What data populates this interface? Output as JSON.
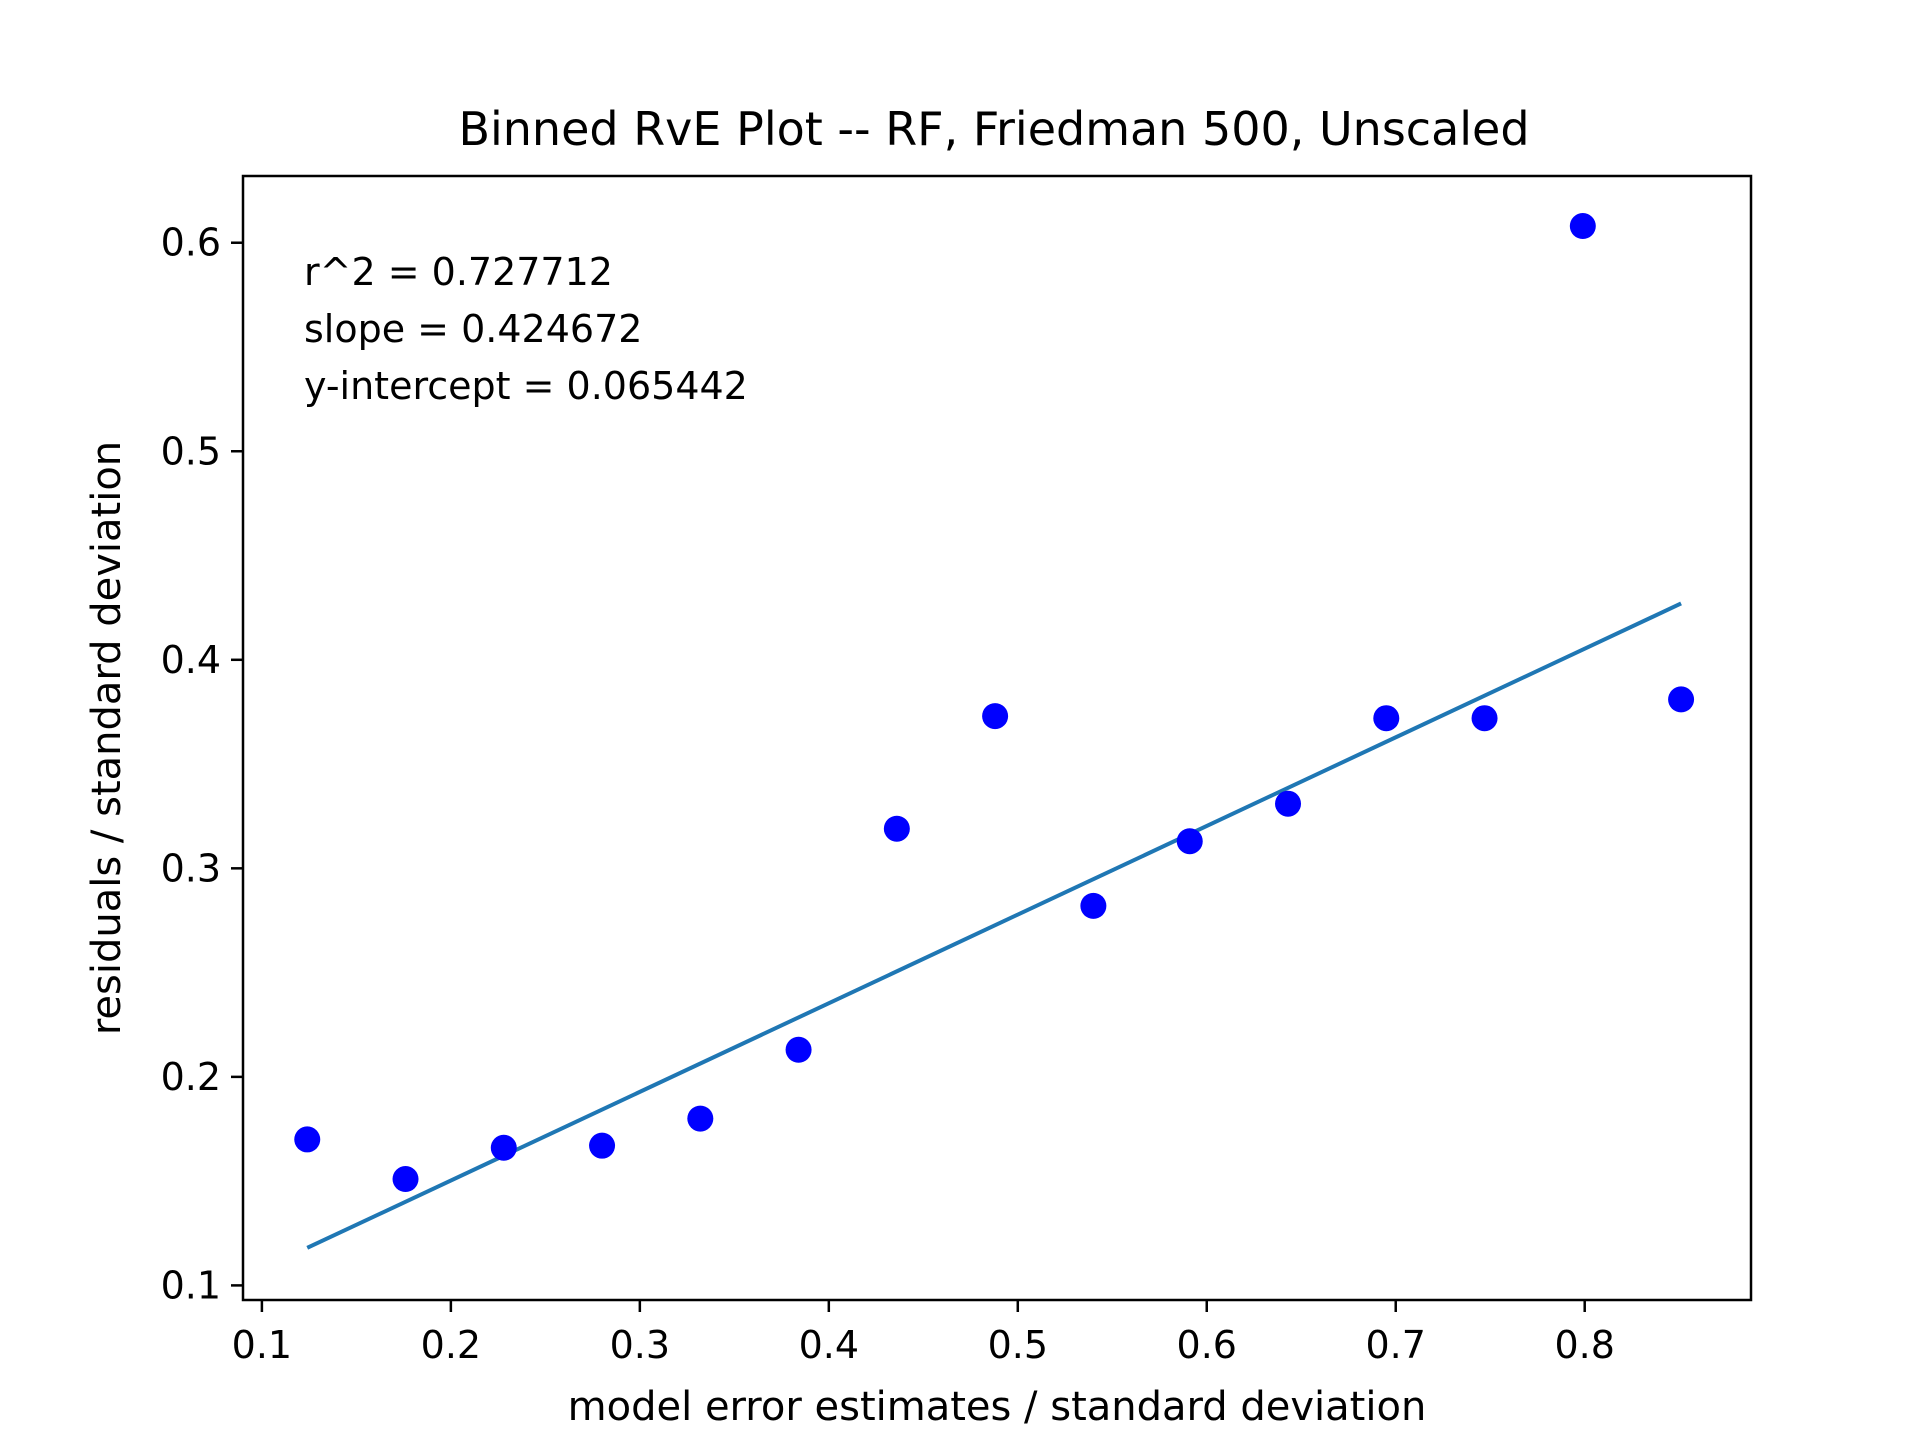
{
  "chart_data": {
    "type": "scatter",
    "title": "Binned RvE Plot -- RF, Friedman 500, Unscaled",
    "xlabel": "model error estimates / standard deviation",
    "ylabel": "residuals / standard deviation",
    "xlim": [
      0.09,
      0.888
    ],
    "ylim": [
      0.093,
      0.632
    ],
    "xticks": [
      0.1,
      0.2,
      0.3,
      0.4,
      0.5,
      0.6,
      0.7,
      0.8
    ],
    "xtick_labels": [
      "0.1",
      "0.2",
      "0.3",
      "0.4",
      "0.5",
      "0.6",
      "0.7",
      "0.8"
    ],
    "yticks": [
      0.1,
      0.2,
      0.3,
      0.4,
      0.5,
      0.6
    ],
    "ytick_labels": [
      "0.1",
      "0.2",
      "0.3",
      "0.4",
      "0.5",
      "0.6"
    ],
    "grid": false,
    "series": [
      {
        "kind": "points",
        "color": "#0000ff",
        "x": [
          0.124,
          0.176,
          0.228,
          0.28,
          0.332,
          0.384,
          0.436,
          0.488,
          0.54,
          0.591,
          0.643,
          0.695,
          0.747,
          0.799,
          0.851
        ],
        "y": [
          0.17,
          0.151,
          0.166,
          0.167,
          0.18,
          0.213,
          0.319,
          0.373,
          0.282,
          0.313,
          0.331,
          0.372,
          0.372,
          0.608,
          0.381
        ]
      },
      {
        "kind": "fit-line",
        "color": "#1f77b4",
        "x": [
          0.124,
          0.851
        ],
        "y": [
          0.118,
          0.427
        ]
      }
    ],
    "annotations": [
      "r^2 = 0.727712",
      "slope = 0.424672",
      "y-intercept = 0.065442"
    ]
  }
}
